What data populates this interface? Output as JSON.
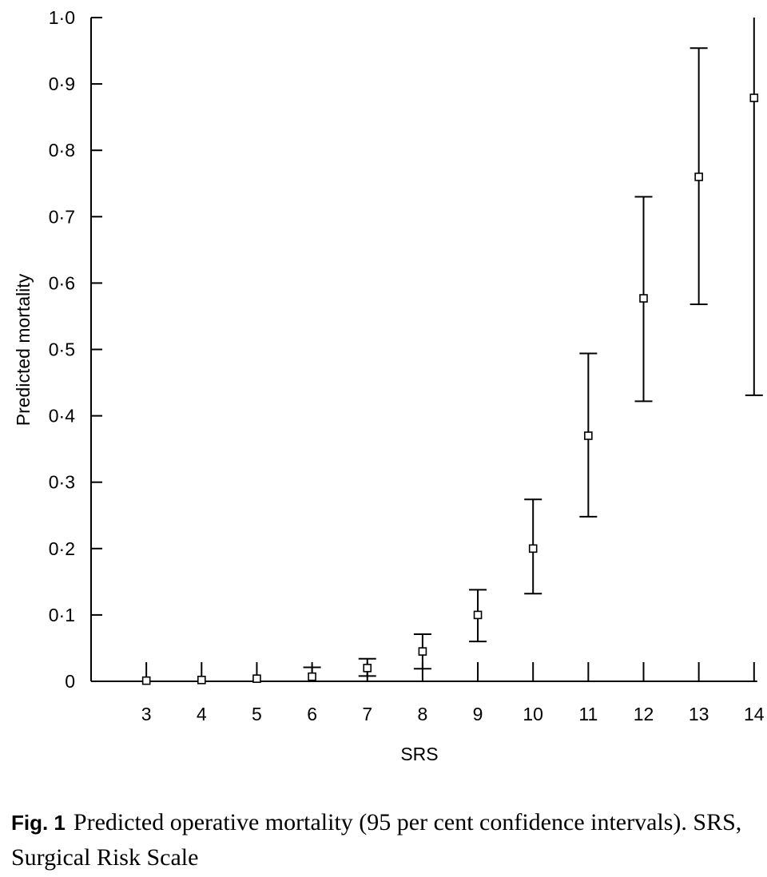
{
  "chart_data": {
    "type": "scatter",
    "title": "",
    "xlabel": "SRS",
    "ylabel": "Predicted mortality",
    "x": [
      3,
      4,
      5,
      6,
      7,
      8,
      9,
      10,
      11,
      12,
      13,
      14
    ],
    "x_tick_labels": [
      "3",
      "4",
      "5",
      "6",
      "7",
      "8",
      "9",
      "10",
      "11",
      "12",
      "13",
      "14"
    ],
    "y_tick_values": [
      0,
      0.1,
      0.2,
      0.3,
      0.4,
      0.5,
      0.6,
      0.7,
      0.8,
      0.9,
      1.0
    ],
    "y_tick_labels": [
      "0",
      "0·1",
      "0·2",
      "0·3",
      "0·4",
      "0·5",
      "0·6",
      "0·7",
      "0·8",
      "0·9",
      "1·0"
    ],
    "xlim": [
      2,
      14
    ],
    "ylim": [
      0,
      1.0
    ],
    "grid": false,
    "series": [
      {
        "values": [
          0.001,
          0.002,
          0.004,
          0.007,
          0.02,
          0.045,
          0.1,
          0.2,
          0.37,
          0.577,
          0.76,
          0.879
        ],
        "ci_lower": [
          null,
          null,
          null,
          null,
          0.008,
          0.019,
          0.06,
          0.132,
          0.248,
          0.422,
          0.568,
          0.431
        ],
        "ci_upper": [
          null,
          null,
          null,
          0.021,
          0.034,
          0.071,
          0.138,
          0.274,
          0.494,
          0.73,
          0.954,
          1.0
        ],
        "marker": "open-square"
      }
    ]
  },
  "caption": {
    "label": "Fig. 1",
    "text": "Predicted operative mortality (95 per cent confidence intervals). SRS, Surgical Risk Scale"
  }
}
